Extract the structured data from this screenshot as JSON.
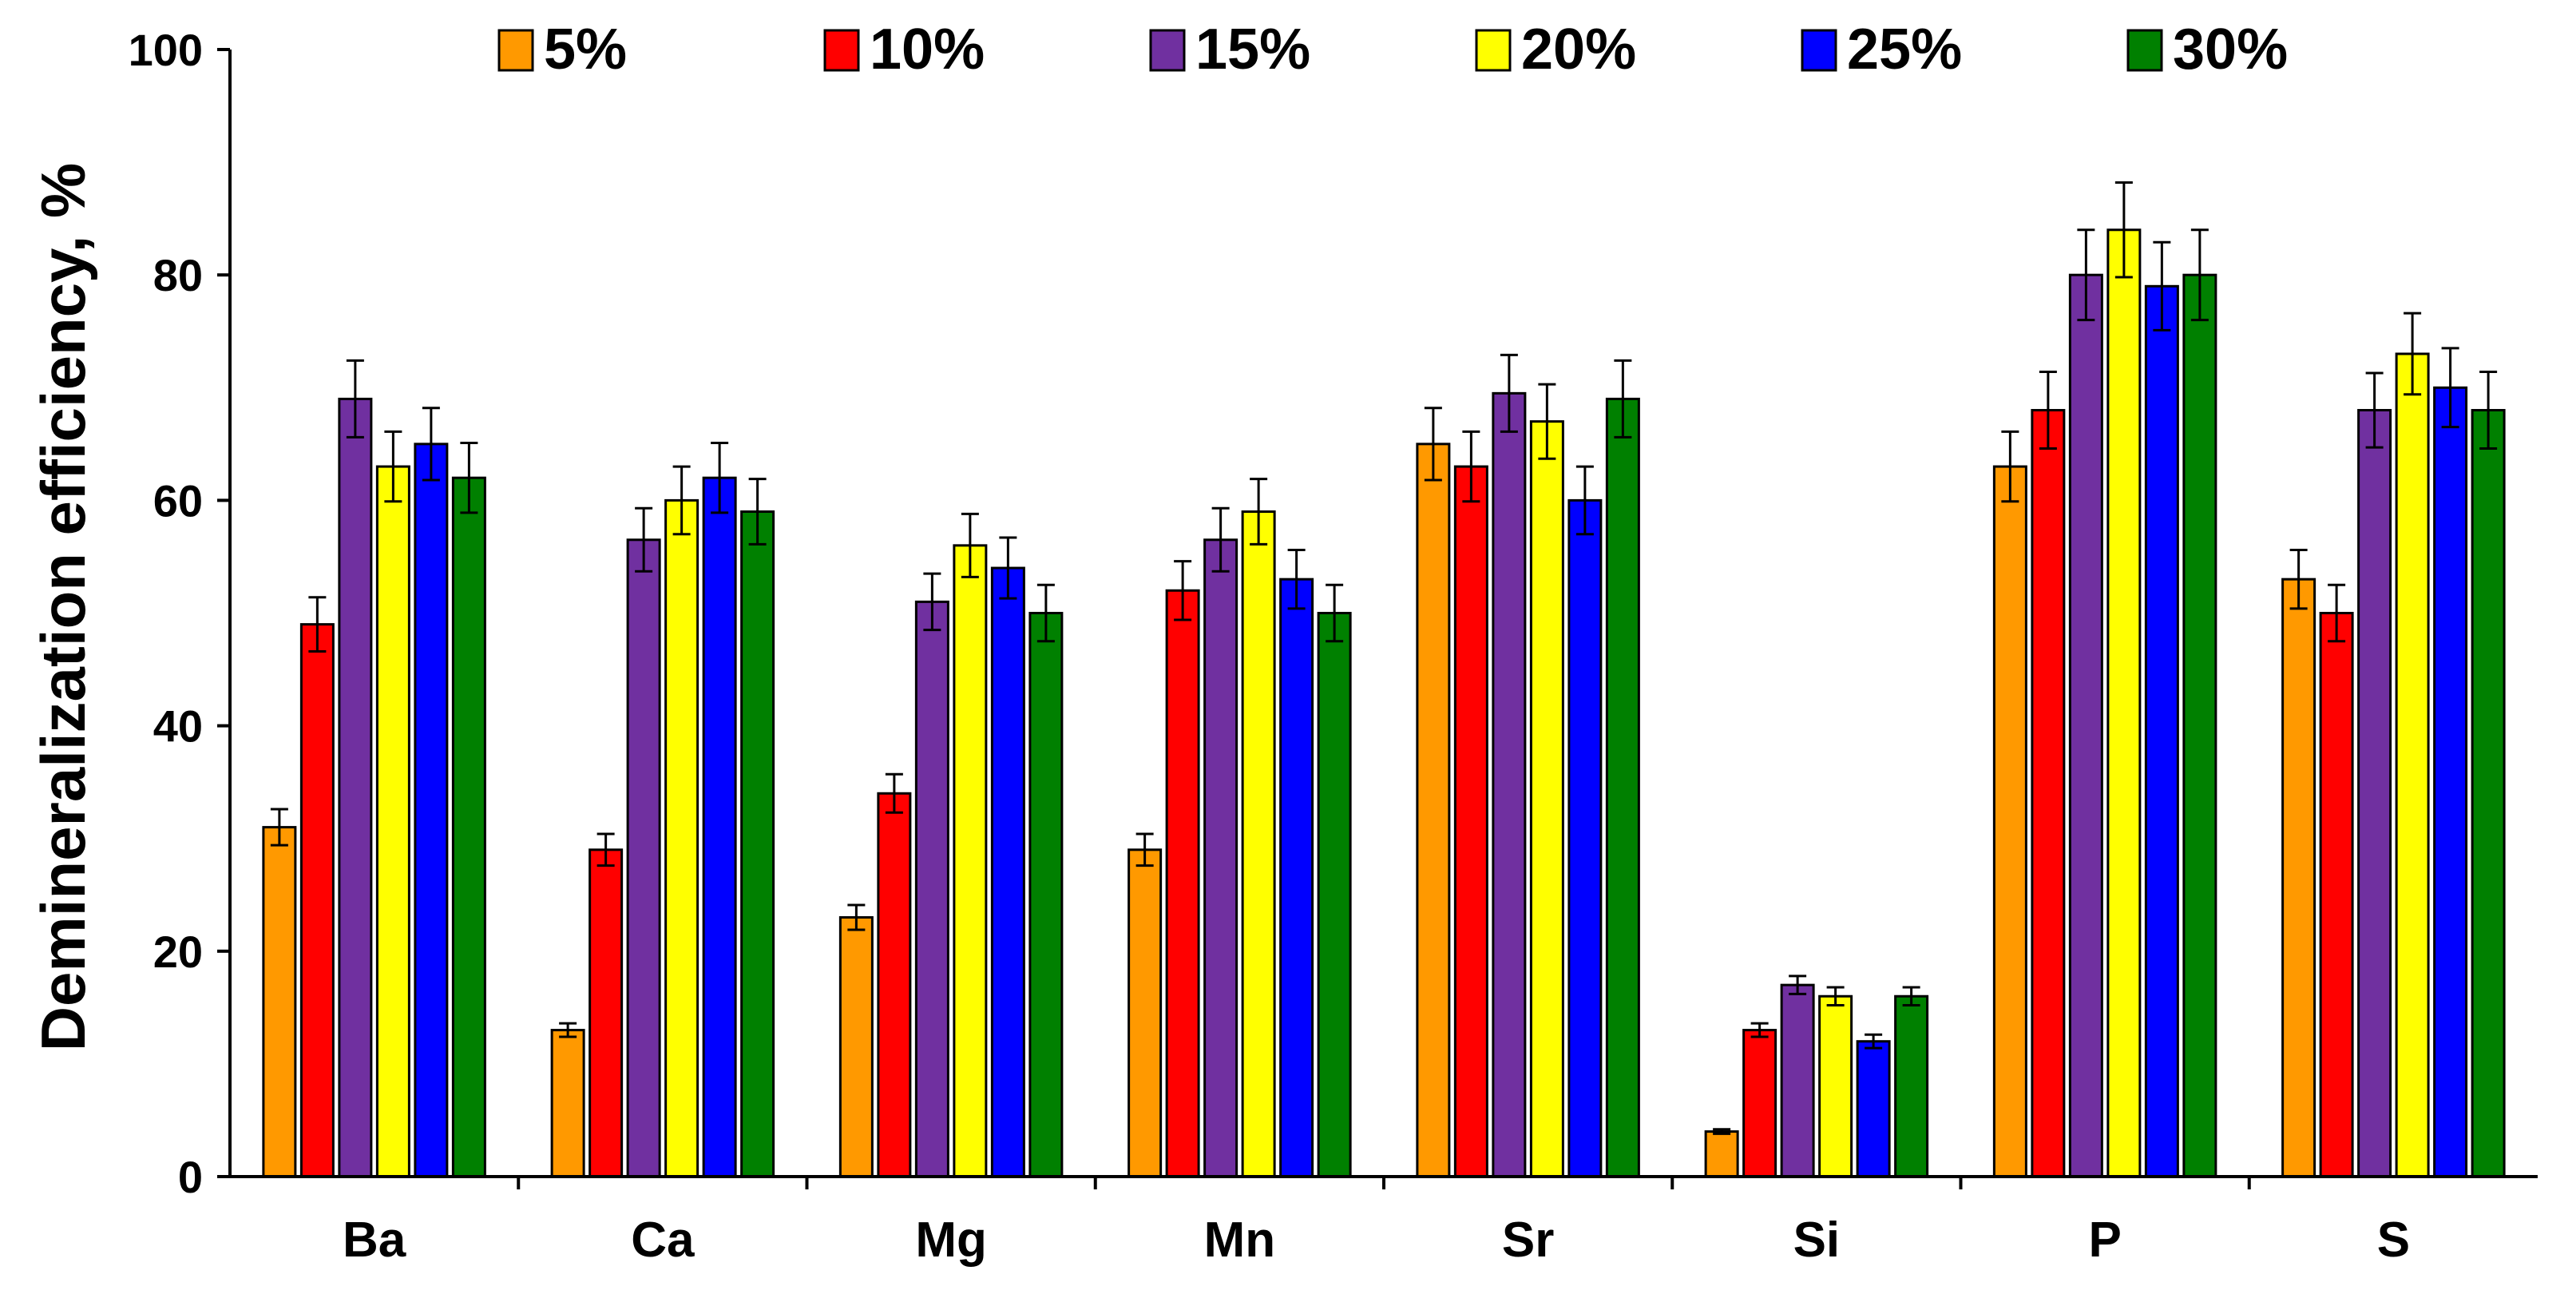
{
  "chart_data": {
    "type": "bar",
    "title": "",
    "xlabel": "",
    "ylabel": "Demineralization efficiency, %",
    "ylim": [
      0,
      100
    ],
    "yticks": [
      0,
      20,
      40,
      60,
      80,
      100
    ],
    "grid": false,
    "legend_position": "top",
    "categories": [
      "Ba",
      "Ca",
      "Mg",
      "Mn",
      "Sr",
      "Si",
      "P",
      "S"
    ],
    "series": [
      {
        "name": "5%",
        "color": "#FF9900",
        "values": [
          31,
          13,
          23,
          29,
          65,
          4,
          63,
          53
        ],
        "errors": [
          1.6,
          0.6,
          1.1,
          1.4,
          3.2,
          0.2,
          3.1,
          2.6
        ]
      },
      {
        "name": "10%",
        "color": "#FF0000",
        "values": [
          49,
          29,
          34,
          52,
          63,
          13,
          68,
          50
        ],
        "errors": [
          2.4,
          1.4,
          1.7,
          2.6,
          3.1,
          0.6,
          3.4,
          2.5
        ]
      },
      {
        "name": "15%",
        "color": "#7030A0",
        "values": [
          69,
          56.5,
          51,
          56.5,
          69.5,
          17,
          80,
          68
        ],
        "errors": [
          3.4,
          2.8,
          2.5,
          2.8,
          3.4,
          0.8,
          4.0,
          3.3
        ]
      },
      {
        "name": "20%",
        "color": "#FFFF00",
        "values": [
          63,
          60,
          56,
          59,
          67,
          16,
          84,
          73
        ],
        "errors": [
          3.1,
          3.0,
          2.8,
          2.9,
          3.3,
          0.8,
          4.2,
          3.6
        ]
      },
      {
        "name": "25%",
        "color": "#0000FF",
        "values": [
          65,
          62,
          54,
          53,
          60,
          12,
          79,
          70
        ],
        "errors": [
          3.2,
          3.1,
          2.7,
          2.6,
          3.0,
          0.6,
          3.9,
          3.5
        ]
      },
      {
        "name": "30%",
        "color": "#008000",
        "values": [
          62,
          59,
          50,
          50,
          69,
          16,
          80,
          68
        ],
        "errors": [
          3.1,
          2.9,
          2.5,
          2.5,
          3.4,
          0.8,
          4.0,
          3.4
        ]
      }
    ]
  }
}
